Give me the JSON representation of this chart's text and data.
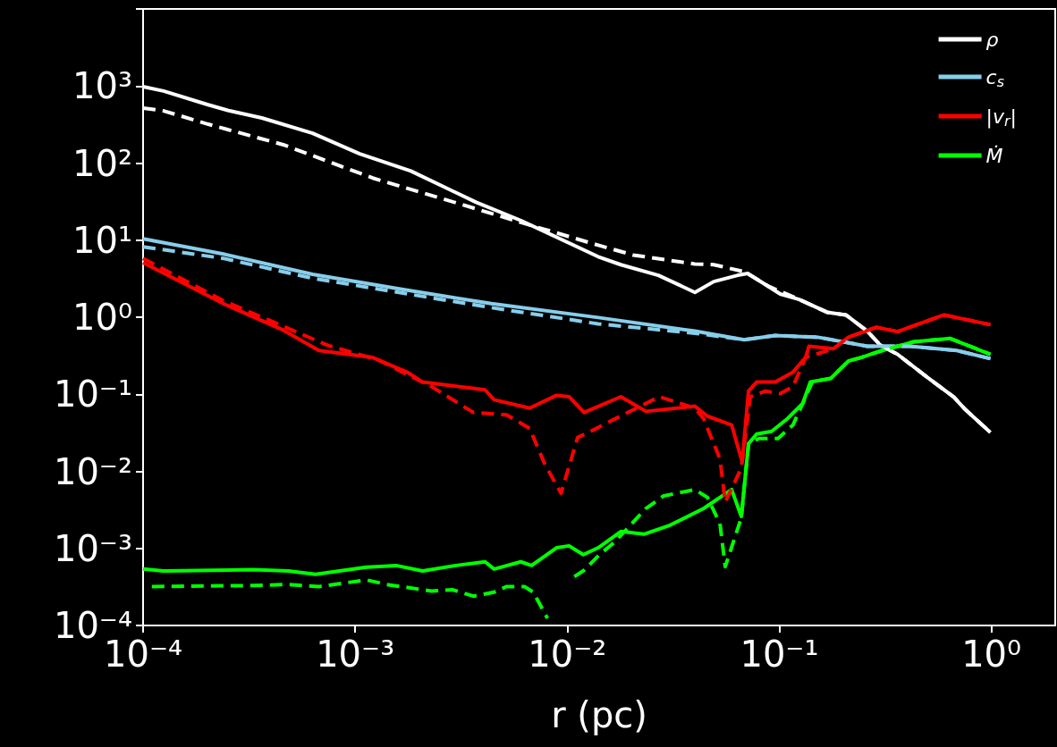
{
  "chart_data": {
    "type": "line",
    "xlabel": "r (pc)",
    "log": "xy",
    "grid": false,
    "legend": "top right",
    "xlim": [
      0.0001,
      2
    ],
    "ylim": [
      0.0001,
      10000
    ],
    "xticks": [
      {
        "value": 0.0001,
        "label": "10⁻⁴"
      },
      {
        "value": 0.001,
        "label": "10⁻³"
      },
      {
        "value": 0.01,
        "label": "10⁻²"
      },
      {
        "value": 0.1,
        "label": "10⁻¹"
      },
      {
        "value": 1,
        "label": "10⁰"
      }
    ],
    "yticks": [
      {
        "value": 0.0001,
        "label": "10⁻⁴"
      },
      {
        "value": 0.001,
        "label": "10⁻³"
      },
      {
        "value": 0.01,
        "label": "10⁻²"
      },
      {
        "value": 0.1,
        "label": "10⁻¹"
      },
      {
        "value": 1,
        "label": "10⁰"
      },
      {
        "value": 10,
        "label": "10¹"
      },
      {
        "value": 100,
        "label": "10²"
      },
      {
        "value": 1000,
        "label": "10³"
      },
      {
        "value": 10000,
        "label": null
      }
    ],
    "series": [
      {
        "name": "ρ",
        "color": "#ffffff",
        "line_style": "solid",
        "x": [
          0.0001,
          0.000125,
          0.000201,
          0.000256,
          0.000363,
          0.00063,
          0.00105,
          0.00183,
          0.00372,
          0.00604,
          0.014,
          0.0179,
          0.0269,
          0.04,
          0.0491,
          0.0637,
          0.071,
          0.101,
          0.124,
          0.168,
          0.206,
          0.26,
          0.298,
          0.361,
          0.493,
          0.665,
          0.755,
          0.99
        ],
        "values": [
          980,
          860,
          575,
          476,
          385,
          244,
          132,
          79,
          31,
          18,
          6.1,
          4.8,
          3.5,
          2.1,
          2.9,
          3.5,
          3.7,
          2.0,
          1.7,
          1.16,
          1.07,
          0.66,
          0.44,
          0.33,
          0.17,
          0.092,
          0.063,
          0.032
        ]
      },
      {
        "name": "c$_{s}$",
        "color": "#87ceeb",
        "line_style": "solid",
        "x": [
          0.0001,
          0.000239,
          0.00063,
          0.00166,
          0.00439,
          0.014,
          0.04,
          0.0683,
          0.0957,
          0.152,
          0.26,
          0.414,
          0.686,
          0.99
        ],
        "values": [
          10.4,
          6.6,
          3.6,
          2.3,
          1.5,
          0.99,
          0.66,
          0.51,
          0.58,
          0.55,
          0.42,
          0.42,
          0.37,
          0.29
        ]
      },
      {
        "name": "|v$_{r}$|",
        "color": "#ff0000",
        "line_style": "solid",
        "x": [
          0.0001,
          0.000239,
          0.000458,
          0.000675,
          0.00121,
          0.00178,
          0.00208,
          0.0041,
          0.00452,
          0.00665,
          0.0089,
          0.0102,
          0.012,
          0.0179,
          0.0235,
          0.04,
          0.0458,
          0.0596,
          0.0668,
          0.0716,
          0.0782,
          0.0957,
          0.116,
          0.133,
          0.138,
          0.18,
          0.212,
          0.286,
          0.361,
          0.598,
          0.99
        ],
        "values": [
          5.1,
          1.5,
          0.68,
          0.37,
          0.3,
          0.19,
          0.144,
          0.114,
          0.085,
          0.066,
          0.097,
          0.093,
          0.058,
          0.093,
          0.06,
          0.07,
          0.052,
          0.04,
          0.0133,
          0.11,
          0.144,
          0.144,
          0.194,
          0.3,
          0.42,
          0.39,
          0.55,
          0.74,
          0.65,
          1.07,
          0.8
        ]
      },
      {
        "name": "Ṁ",
        "color": "#00ff00",
        "line_style": "solid",
        "x": [
          0.0001,
          0.000125,
          0.00033,
          0.000485,
          0.00065,
          0.00113,
          0.00156,
          0.00208,
          0.00298,
          0.0041,
          0.00452,
          0.00604,
          0.00679,
          0.0089,
          0.0102,
          0.0119,
          0.014,
          0.0179,
          0.023,
          0.0305,
          0.044,
          0.0596,
          0.0662,
          0.0716,
          0.0782,
          0.092,
          0.109,
          0.129,
          0.14,
          0.175,
          0.212,
          0.243,
          0.306,
          0.431,
          0.64,
          0.99
        ],
        "values": [
          0.00054,
          0.00051,
          0.00053,
          0.00051,
          0.00046,
          0.00057,
          0.0006,
          0.00051,
          0.0006,
          0.00067,
          0.00054,
          0.00067,
          0.0006,
          0.00102,
          0.00108,
          0.00083,
          0.00102,
          0.00166,
          0.00153,
          0.002,
          0.0033,
          0.0058,
          0.0026,
          0.0228,
          0.0305,
          0.033,
          0.048,
          0.076,
          0.144,
          0.161,
          0.27,
          0.3,
          0.37,
          0.48,
          0.53,
          0.33
        ]
      },
      {
        "color": "#ffffff",
        "line_style": "dashed",
        "x": [
          0.0001,
          0.000125,
          0.000203,
          0.000458,
          0.00121,
          0.00318,
          0.00604,
          0.014,
          0.0205,
          0.04,
          0.0491,
          0.0683,
          0.0895,
          0.124,
          0.168,
          0.206,
          0.26,
          0.298,
          0.361,
          0.493,
          0.665,
          0.755,
          0.99
        ],
        "values": [
          517,
          476,
          319,
          173,
          64,
          29,
          17,
          8.6,
          6.4,
          4.9,
          4.8,
          3.9,
          2.5,
          1.7,
          1.16,
          1.07,
          0.66,
          0.44,
          0.33,
          0.17,
          0.092,
          0.063,
          0.032
        ]
      },
      {
        "color": "#87ceeb",
        "line_style": "dashed",
        "x": [
          0.0001,
          0.000239,
          0.00063,
          0.00439,
          0.014,
          0.04,
          0.0683,
          0.0957,
          0.152,
          0.26,
          0.414,
          0.686,
          0.99
        ],
        "values": [
          8.2,
          5.8,
          3.2,
          1.33,
          0.82,
          0.62,
          0.51,
          0.58,
          0.55,
          0.42,
          0.42,
          0.37,
          0.29
        ]
      },
      {
        "color": "#ff0000",
        "line_style": "dashed",
        "x": [
          0.0001,
          0.000239,
          0.000745,
          0.00128,
          0.00229,
          0.00361,
          0.00518,
          0.00665,
          0.00785,
          0.00935,
          0.0112,
          0.0129,
          0.0163,
          0.0272,
          0.04,
          0.044,
          0.0525,
          0.0556,
          0.0662,
          0.073,
          0.0861,
          0.101,
          0.116,
          0.133,
          0.18,
          0.212,
          0.286,
          0.361,
          0.598,
          0.99
        ],
        "values": [
          5.8,
          1.64,
          0.43,
          0.28,
          0.126,
          0.058,
          0.054,
          0.036,
          0.0123,
          0.0052,
          0.0275,
          0.033,
          0.046,
          0.093,
          0.066,
          0.048,
          0.0145,
          0.004,
          0.011,
          0.093,
          0.11,
          0.102,
          0.126,
          0.3,
          0.39,
          0.55,
          0.74,
          0.65,
          1.07,
          0.8
        ]
      },
      {
        "color": "#00ff00",
        "line_style": "dashed",
        "x": [
          0.00011,
          0.00033,
          0.000485,
          0.000675,
          0.00113,
          0.00141,
          0.00229,
          0.00289,
          0.00361,
          0.00452,
          0.00518,
          0.00628,
          0.00692,
          0.00807,
          0.0093,
          0.0108,
          0.012,
          0.0142,
          0.0167,
          0.0235,
          0.0285,
          0.04,
          0.0458,
          0.0525,
          0.0556,
          0.0662,
          0.0716,
          0.0803,
          0.0986,
          0.116,
          0.129,
          0.143,
          0.175,
          0.212,
          0.243,
          0.306,
          0.431,
          0.64,
          0.99
        ],
        "values": [
          0.00032,
          0.00033,
          0.00034,
          0.00032,
          0.00039,
          0.00034,
          0.00028,
          0.00029,
          0.00024,
          0.00027,
          0.00032,
          0.00032,
          0.00027,
          0.000124,
          null,
          0.00043,
          0.00052,
          0.00083,
          0.0012,
          0.0033,
          0.0048,
          0.0058,
          0.0046,
          0.0021,
          0.00058,
          0.0025,
          0.0228,
          0.0267,
          0.0267,
          0.04,
          0.076,
          0.144,
          0.161,
          0.27,
          0.3,
          0.37,
          0.48,
          0.53,
          0.33
        ]
      }
    ]
  }
}
